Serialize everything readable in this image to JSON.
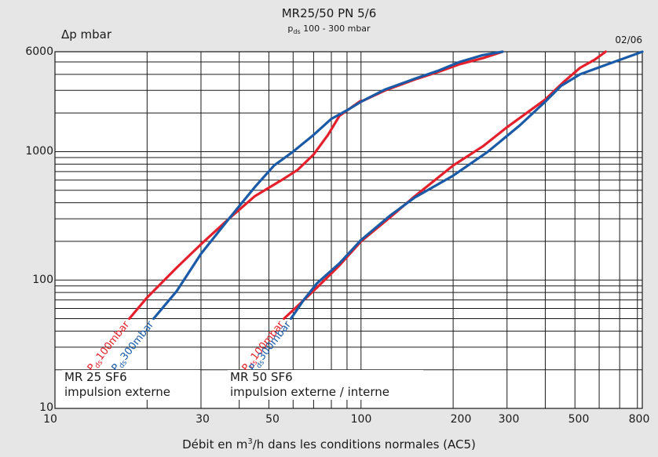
{
  "title": "MR25/50 PN 5/6",
  "subtitle_main": "p",
  "subtitle_sub": "ds",
  "subtitle_rest": " 100 - 300 mbar",
  "ylabel": "Δp mbar",
  "date": "02/06",
  "xlabel_pre": "Débit en m",
  "xlabel_sup": "3",
  "xlabel_post": "/h dans les conditions normales (AC5)",
  "x_ticks": [
    "10",
    "30",
    "50",
    "100",
    "200",
    "300",
    "500",
    "800"
  ],
  "y_ticks": [
    "6000",
    "1000",
    "100",
    "10"
  ],
  "group_mr25": {
    "line1": "MR 25 SF6",
    "line2": "impulsion externe"
  },
  "group_mr50": {
    "line1": "MR 50 SF6",
    "line2": "impulsion externe / interne"
  },
  "colors": {
    "red": "#e3202b",
    "blue": "#1b5aa6",
    "grid": "#1a1a1a",
    "plot_bg": "#ffffff"
  },
  "chart_data": {
    "type": "line",
    "title": "MR25/50 PN 5/6",
    "subtitle": "pds 100 - 300 mbar",
    "xlabel": "Débit en m3/h dans les conditions normales (AC5)",
    "ylabel": "Δp mbar",
    "xscale": "log",
    "yscale": "log",
    "xlim": [
      10,
      830
    ],
    "ylim": [
      10,
      6000
    ],
    "grid": true,
    "series": [
      {
        "name": "Pds 100mbar",
        "group": "MR 25 SF6",
        "color": "red",
        "x": [
          17.5,
          20,
          25,
          30,
          37,
          45,
          55,
          62,
          70,
          78,
          85,
          100
        ],
        "y": [
          50,
          73,
          125,
          190,
          300,
          450,
          600,
          720,
          950,
          1350,
          1900,
          2500
        ]
      },
      {
        "name": "Pds 300mbar",
        "group": "MR 25 SF6",
        "color": "blue",
        "x": [
          21,
          25,
          30,
          37,
          45,
          52,
          60,
          70,
          80,
          90,
          100
        ],
        "y": [
          50,
          82,
          160,
          300,
          530,
          780,
          1000,
          1350,
          1800,
          2100,
          2450
        ]
      },
      {
        "name": "Pds 100mbar",
        "group": "MR 50 SF6",
        "color": "red",
        "x": [
          56,
          63,
          72,
          85,
          100,
          125,
          150,
          200,
          250,
          300,
          400,
          460,
          520,
          580,
          630
        ],
        "y": [
          50,
          65,
          88,
          130,
          200,
          310,
          450,
          780,
          1100,
          1550,
          2550,
          3500,
          4500,
          5200,
          6000
        ]
      },
      {
        "name": "Pds 300mbar",
        "group": "MR 50 SF6",
        "color": "blue",
        "x": [
          59,
          65,
          72,
          85,
          100,
          125,
          150,
          200,
          260,
          330,
          400,
          450,
          520,
          640,
          720,
          830
        ],
        "y": [
          50,
          70,
          95,
          135,
          205,
          320,
          440,
          650,
          1000,
          1600,
          2450,
          3250,
          4000,
          4800,
          5300,
          6000
        ]
      }
    ],
    "upper_branch_series": [
      {
        "name": "Pds 100mbar",
        "group": "MR 25 SF6",
        "color": "red",
        "x": [
          100,
          120,
          150,
          180,
          210,
          250,
          290
        ],
        "y": [
          2450,
          3000,
          3650,
          4200,
          4800,
          5350,
          6000
        ]
      },
      {
        "name": "Pds 300mbar",
        "group": "MR 25 SF6",
        "color": "blue",
        "x": [
          100,
          120,
          150,
          180,
          210,
          250,
          290
        ],
        "y": [
          2450,
          3050,
          3700,
          4300,
          5000,
          5650,
          6000
        ]
      }
    ],
    "series_labels": [
      {
        "name": "Pds 100mbar",
        "group": "MR 25 SF6",
        "color": "red"
      },
      {
        "name": "Pds 300mbar",
        "group": "MR 25 SF6",
        "color": "blue"
      },
      {
        "name": "Pds 100mbar",
        "group": "MR 50 SF6",
        "color": "red"
      },
      {
        "name": "Pds 300mbar",
        "group": "MR 50 SF6",
        "color": "blue"
      }
    ]
  },
  "label_text": {
    "p": "P",
    "ds": "ds",
    "v100": "100mbar",
    "v300": "300mbar"
  }
}
